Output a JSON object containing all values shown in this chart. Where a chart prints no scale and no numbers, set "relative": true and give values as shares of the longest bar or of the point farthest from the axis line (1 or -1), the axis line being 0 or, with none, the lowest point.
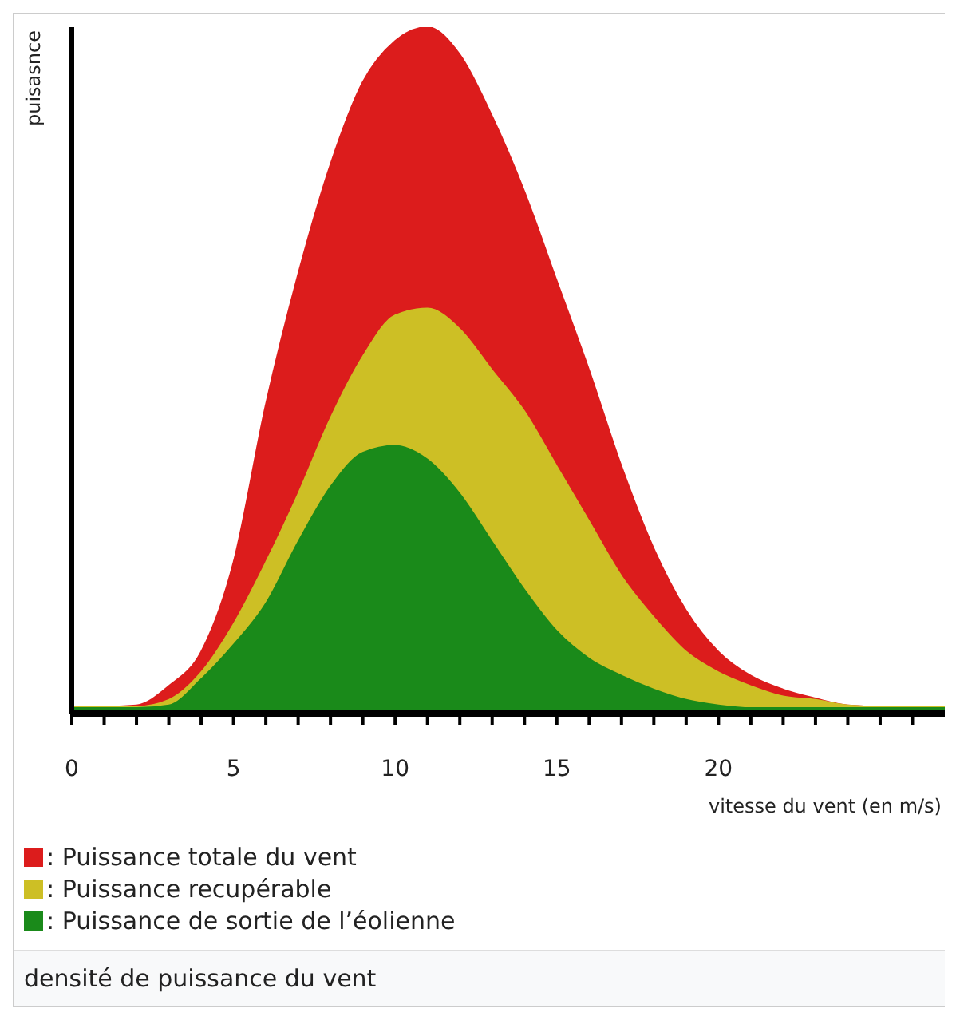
{
  "chart_data": {
    "type": "area",
    "relative": true,
    "ylabel": "puisasnce",
    "xlabel": "vitesse du vent (en m/s)",
    "annotations": [
      "densité de puissance du vent"
    ],
    "legend": "bottom",
    "grid": false,
    "x": [
      0,
      1,
      2,
      3,
      4,
      5,
      6,
      7,
      8,
      9,
      10,
      11,
      12,
      13,
      14,
      15,
      16,
      17,
      18,
      19,
      20,
      21,
      22,
      23,
      24,
      25,
      26,
      27
    ],
    "xlim": [
      0,
      27
    ],
    "xticks": [
      0,
      {
        "value": 1,
        "label": null
      },
      {
        "value": 2,
        "label": null
      },
      {
        "value": 3,
        "label": null
      },
      {
        "value": 4,
        "label": null
      },
      5,
      {
        "value": 6,
        "label": null
      },
      {
        "value": 7,
        "label": null
      },
      {
        "value": 8,
        "label": null
      },
      {
        "value": 9,
        "label": null
      },
      10,
      {
        "value": 11,
        "label": null
      },
      {
        "value": 12,
        "label": null
      },
      {
        "value": 13,
        "label": null
      },
      {
        "value": 14,
        "label": null
      },
      15,
      {
        "value": 16,
        "label": null
      },
      {
        "value": 17,
        "label": null
      },
      {
        "value": 18,
        "label": null
      },
      {
        "value": 19,
        "label": null
      },
      20,
      {
        "value": 21,
        "label": null
      },
      {
        "value": 22,
        "label": null
      },
      {
        "value": 23,
        "label": null
      },
      {
        "value": 24,
        "label": null
      },
      {
        "value": 25,
        "label": null
      },
      {
        "value": 26,
        "label": null
      }
    ],
    "series": [
      {
        "name": ": Puissance totale du vent",
        "color": "#dc1c1c",
        "values": [
          0.01,
          0.01,
          0.012,
          0.04,
          0.09,
          0.22,
          0.45,
          0.64,
          0.8,
          0.92,
          0.98,
          1,
          0.96,
          0.87,
          0.76,
          0.63,
          0.5,
          0.36,
          0.24,
          0.15,
          0.09,
          0.055,
          0.035,
          0.022,
          0.012,
          0.01,
          0.01,
          0.01
        ]
      },
      {
        "name": ": Puissance recupérable",
        "color": "#cdbf25",
        "values": [
          0.01,
          0.01,
          0.01,
          0.02,
          0.06,
          0.13,
          0.22,
          0.32,
          0.43,
          0.52,
          0.58,
          0.59,
          0.56,
          0.5,
          0.44,
          0.36,
          0.28,
          0.2,
          0.14,
          0.09,
          0.06,
          0.04,
          0.025,
          0.02,
          0.012,
          0.01,
          0.01,
          0.01
        ]
      },
      {
        "name": ": Puissance de sortie de l’éolienne",
        "color": "#1a8a1a",
        "values": [
          0.008,
          0.008,
          0.008,
          0.012,
          0.05,
          0.1,
          0.16,
          0.25,
          0.33,
          0.38,
          0.39,
          0.37,
          0.32,
          0.25,
          0.18,
          0.12,
          0.08,
          0.055,
          0.035,
          0.02,
          0.012,
          0.008,
          0.008,
          0.008,
          0.008,
          0.008,
          0.008,
          0.008
        ]
      }
    ]
  }
}
